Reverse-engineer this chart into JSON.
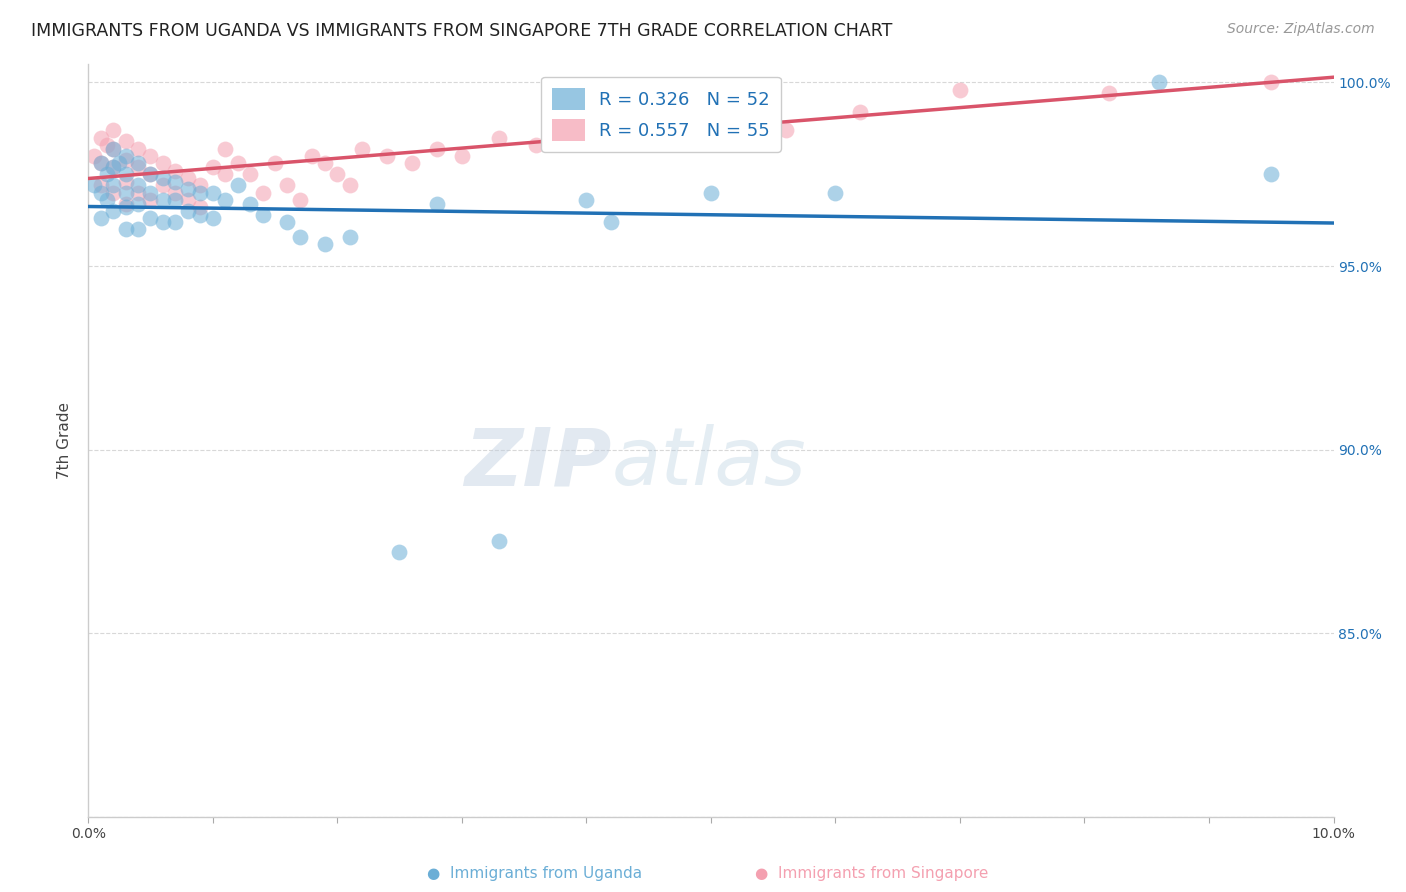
{
  "title": "IMMIGRANTS FROM UGANDA VS IMMIGRANTS FROM SINGAPORE 7TH GRADE CORRELATION CHART",
  "source": "Source: ZipAtlas.com",
  "ylabel": "7th Grade",
  "xlim": [
    0.0,
    0.1
  ],
  "ylim": [
    0.8,
    1.005
  ],
  "y_ticks": [
    0.8,
    0.85,
    0.9,
    0.95,
    1.0
  ],
  "y_tick_labels_right": [
    "",
    "85.0%",
    "90.0%",
    "95.0%",
    "100.0%"
  ],
  "uganda_color": "#6baed6",
  "singapore_color": "#f4a0b0",
  "uganda_line_color": "#2171b5",
  "singapore_line_color": "#d9546a",
  "legend_uganda_label": "R = 0.326   N = 52",
  "legend_singapore_label": "R = 0.557   N = 55",
  "watermark": "ZIPatlas",
  "background_color": "#ffffff",
  "grid_color": "#d8d8d8",
  "uganda_x": [
    0.0005,
    0.001,
    0.001,
    0.001,
    0.0015,
    0.0015,
    0.002,
    0.002,
    0.002,
    0.002,
    0.0025,
    0.003,
    0.003,
    0.003,
    0.003,
    0.003,
    0.004,
    0.004,
    0.004,
    0.004,
    0.005,
    0.005,
    0.005,
    0.006,
    0.006,
    0.006,
    0.007,
    0.007,
    0.007,
    0.008,
    0.008,
    0.009,
    0.009,
    0.01,
    0.01,
    0.011,
    0.012,
    0.013,
    0.014,
    0.016,
    0.017,
    0.019,
    0.021,
    0.025,
    0.028,
    0.033,
    0.04,
    0.042,
    0.05,
    0.06,
    0.086,
    0.095
  ],
  "uganda_y": [
    0.972,
    0.978,
    0.97,
    0.963,
    0.975,
    0.968,
    0.982,
    0.977,
    0.972,
    0.965,
    0.978,
    0.98,
    0.975,
    0.97,
    0.966,
    0.96,
    0.978,
    0.972,
    0.967,
    0.96,
    0.975,
    0.97,
    0.963,
    0.974,
    0.968,
    0.962,
    0.973,
    0.968,
    0.962,
    0.971,
    0.965,
    0.97,
    0.964,
    0.97,
    0.963,
    0.968,
    0.972,
    0.967,
    0.964,
    0.962,
    0.958,
    0.956,
    0.958,
    0.872,
    0.967,
    0.875,
    0.968,
    0.962,
    0.97,
    0.97,
    1.0,
    0.975
  ],
  "singapore_x": [
    0.0005,
    0.001,
    0.001,
    0.001,
    0.0015,
    0.002,
    0.002,
    0.002,
    0.002,
    0.003,
    0.003,
    0.003,
    0.003,
    0.004,
    0.004,
    0.004,
    0.005,
    0.005,
    0.005,
    0.006,
    0.006,
    0.007,
    0.007,
    0.008,
    0.008,
    0.009,
    0.009,
    0.01,
    0.011,
    0.011,
    0.012,
    0.013,
    0.014,
    0.015,
    0.016,
    0.017,
    0.018,
    0.019,
    0.02,
    0.021,
    0.022,
    0.024,
    0.026,
    0.028,
    0.03,
    0.033,
    0.036,
    0.04,
    0.045,
    0.05,
    0.056,
    0.062,
    0.07,
    0.082,
    0.095
  ],
  "singapore_y": [
    0.98,
    0.985,
    0.978,
    0.972,
    0.983,
    0.987,
    0.982,
    0.977,
    0.97,
    0.984,
    0.979,
    0.973,
    0.967,
    0.982,
    0.977,
    0.97,
    0.98,
    0.975,
    0.968,
    0.978,
    0.972,
    0.976,
    0.97,
    0.974,
    0.968,
    0.972,
    0.966,
    0.977,
    0.982,
    0.975,
    0.978,
    0.975,
    0.97,
    0.978,
    0.972,
    0.968,
    0.98,
    0.978,
    0.975,
    0.972,
    0.982,
    0.98,
    0.978,
    0.982,
    0.98,
    0.985,
    0.983,
    0.987,
    0.99,
    0.993,
    0.987,
    0.992,
    0.998,
    0.997,
    1.0
  ]
}
